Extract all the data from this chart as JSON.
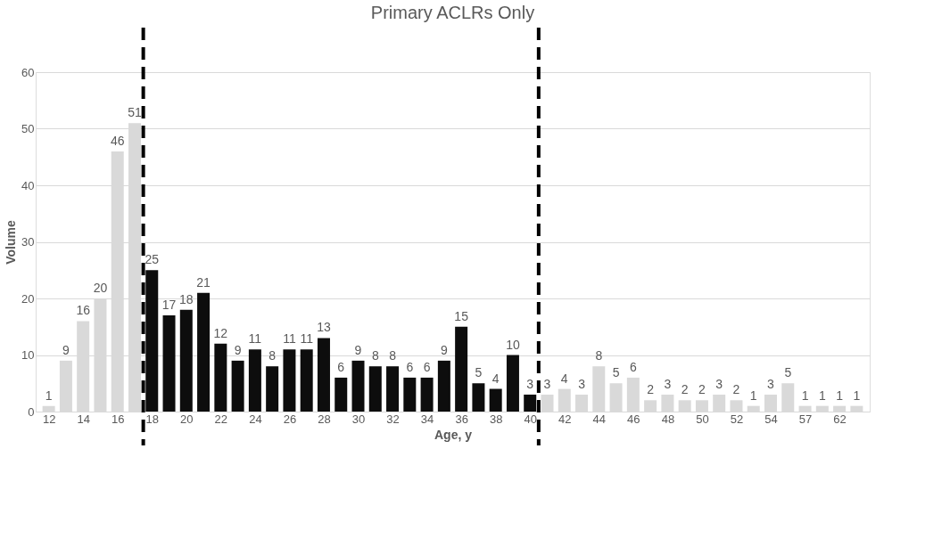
{
  "chart_data": {
    "type": "bar",
    "title": "Primary ACLRs Only",
    "xlabel": "Age, y",
    "ylabel": "Volume",
    "categories": [
      "12",
      null,
      "14",
      null,
      "16",
      null,
      "18",
      null,
      "20",
      null,
      "22",
      null,
      "24",
      null,
      "26",
      null,
      "28",
      null,
      "30",
      null,
      "32",
      null,
      "34",
      null,
      "36",
      null,
      "38",
      null,
      "40",
      null,
      "42",
      null,
      "44",
      null,
      "46",
      null,
      "48",
      null,
      "50",
      null,
      "52",
      null,
      "54",
      null,
      "57",
      null,
      "62",
      null
    ],
    "values": [
      1,
      9,
      16,
      20,
      46,
      51,
      25,
      17,
      18,
      21,
      12,
      9,
      11,
      8,
      11,
      11,
      13,
      6,
      9,
      8,
      8,
      6,
      6,
      9,
      15,
      5,
      4,
      10,
      3,
      3,
      4,
      3,
      8,
      5,
      6,
      2,
      3,
      2,
      2,
      3,
      2,
      1,
      3,
      5,
      1,
      1,
      1,
      1
    ],
    "colors": [
      "#d9d9d9",
      "#d9d9d9",
      "#d9d9d9",
      "#d9d9d9",
      "#d9d9d9",
      "#d9d9d9",
      "#0d0d0d",
      "#0d0d0d",
      "#0d0d0d",
      "#0d0d0d",
      "#0d0d0d",
      "#0d0d0d",
      "#0d0d0d",
      "#0d0d0d",
      "#0d0d0d",
      "#0d0d0d",
      "#0d0d0d",
      "#0d0d0d",
      "#0d0d0d",
      "#0d0d0d",
      "#0d0d0d",
      "#0d0d0d",
      "#0d0d0d",
      "#0d0d0d",
      "#0d0d0d",
      "#0d0d0d",
      "#0d0d0d",
      "#0d0d0d",
      "#0d0d0d",
      "#d9d9d9",
      "#d9d9d9",
      "#d9d9d9",
      "#d9d9d9",
      "#d9d9d9",
      "#d9d9d9",
      "#d9d9d9",
      "#d9d9d9",
      "#d9d9d9",
      "#d9d9d9",
      "#d9d9d9",
      "#d9d9d9",
      "#d9d9d9",
      "#d9d9d9",
      "#d9d9d9",
      "#d9d9d9",
      "#d9d9d9",
      "#d9d9d9",
      "#d9d9d9"
    ],
    "ylim": [
      0,
      60
    ],
    "yticks": [
      0,
      10,
      20,
      30,
      40,
      50,
      60
    ],
    "grid": "y",
    "data_labels": true
  }
}
